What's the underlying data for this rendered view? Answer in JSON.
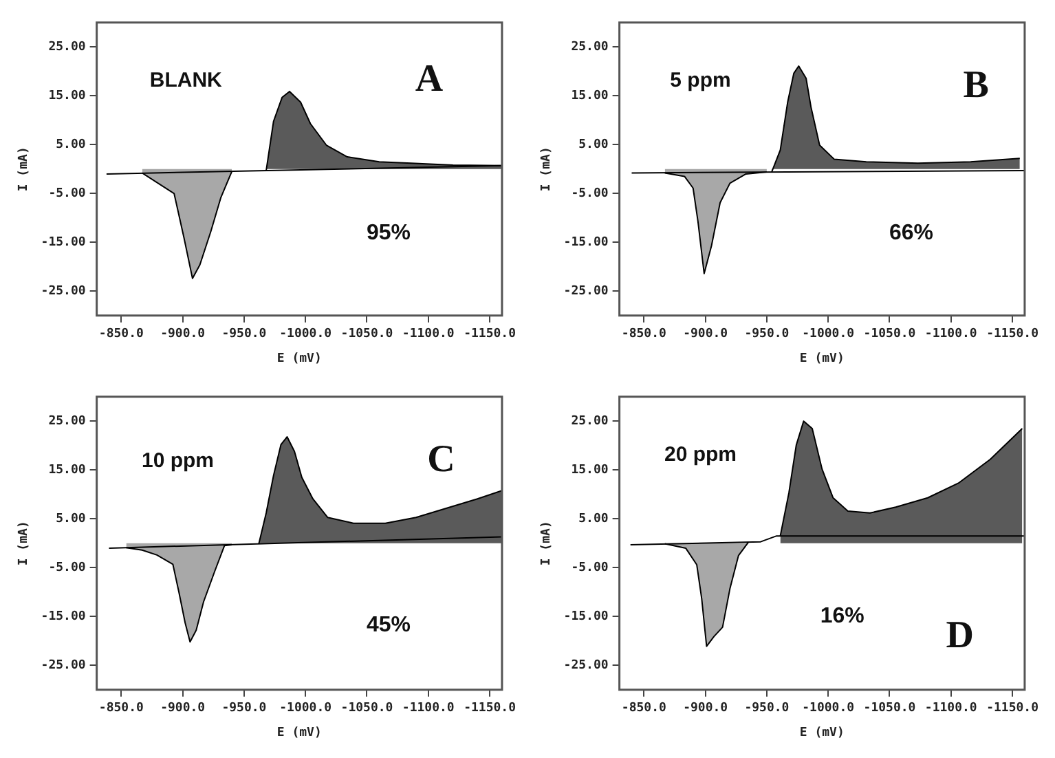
{
  "chart_data": [
    {
      "type": "area",
      "xlabel": "E (mV)",
      "ylabel": "I (mA)",
      "annotations": [
        "BLANK",
        "A",
        "95%"
      ],
      "xlim": [
        -830,
        -1160
      ],
      "ylim": [
        -30,
        30
      ],
      "xticks": [
        {
          "value": -850,
          "label": "-850.0"
        },
        {
          "value": -900,
          "label": "-900.0"
        },
        {
          "value": -950,
          "label": "-950.0"
        },
        {
          "value": -1000,
          "label": "-1000.0"
        },
        {
          "value": -1050,
          "label": "-1050.0"
        },
        {
          "value": -1100,
          "label": "-1100.0"
        },
        {
          "value": -1150,
          "label": "-1150.0"
        }
      ],
      "yticks": [
        {
          "value": 25,
          "label": "25.00"
        },
        {
          "value": 15,
          "label": "15.00"
        },
        {
          "value": 5,
          "label": "5.00"
        },
        {
          "value": -5,
          "label": "-5.00"
        },
        {
          "value": -15,
          "label": "-15.00"
        },
        {
          "value": -25,
          "label": "-25.00"
        }
      ],
      "grid": false,
      "legend": false,
      "marker": "none",
      "series": [
        {
          "type": "line",
          "color": "#000000",
          "x": [
            -838,
            -1160
          ],
          "values": [
            -1,
            0.7
          ]
        },
        {
          "color": "#a8a8a8",
          "x": [
            -867,
            -893,
            -901,
            -908,
            -914,
            -923,
            -931,
            -940
          ],
          "values": [
            -0.8,
            -5,
            -14,
            -22.4,
            -19.6,
            -12.7,
            -5.9,
            -0.5
          ]
        },
        {
          "color": "#5a5a5a",
          "x": [
            -968,
            -974,
            -981,
            -987,
            -996,
            -1004,
            -1017,
            -1034,
            -1060,
            -1086,
            -1120,
            -1160
          ],
          "values": [
            -0.3,
            9.8,
            14.7,
            15.9,
            13.7,
            9.3,
            4.9,
            2.5,
            1.5,
            1.2,
            0.8,
            0.7
          ]
        }
      ]
    },
    {
      "type": "area",
      "xlabel": "E (mV)",
      "ylabel": "I (mA)",
      "annotations": [
        "5 ppm",
        "B",
        "66%"
      ],
      "xlim": [
        -830,
        -1160
      ],
      "ylim": [
        -30,
        30
      ],
      "xticks": [
        {
          "value": -850,
          "label": "-850.0"
        },
        {
          "value": -900,
          "label": "-900.0"
        },
        {
          "value": -950,
          "label": "-950.0"
        },
        {
          "value": -1000,
          "label": "-1000.0"
        },
        {
          "value": -1050,
          "label": "-1050.0"
        },
        {
          "value": -1100,
          "label": "-1100.0"
        },
        {
          "value": -1150,
          "label": "-1150.0"
        }
      ],
      "yticks": [
        {
          "value": 25,
          "label": "25.00"
        },
        {
          "value": 15,
          "label": "15.00"
        },
        {
          "value": 5,
          "label": "5.00"
        },
        {
          "value": -5,
          "label": "-5.00"
        },
        {
          "value": -15,
          "label": "-15.00"
        },
        {
          "value": -25,
          "label": "-25.00"
        }
      ],
      "grid": false,
      "legend": false,
      "marker": "none",
      "series": [
        {
          "type": "line",
          "color": "#000000",
          "x": [
            -840,
            -1160
          ],
          "values": [
            -0.8,
            -0.3
          ]
        },
        {
          "color": "#a8a8a8",
          "x": [
            -867,
            -883,
            -890,
            -894,
            -899,
            -905,
            -912,
            -920,
            -933,
            -950
          ],
          "values": [
            -0.8,
            -1.5,
            -3.9,
            -10.8,
            -21.4,
            -15.7,
            -6.9,
            -2.9,
            -1,
            -0.6
          ]
        },
        {
          "color": "#5a5a5a",
          "x": [
            -954,
            -961,
            -967,
            -972,
            -976,
            -982,
            -986,
            -993,
            -1005,
            -1031,
            -1073,
            -1116,
            -1156
          ],
          "values": [
            -0.6,
            3.9,
            13.7,
            19.6,
            21.1,
            18.6,
            12.7,
            4.9,
            2,
            1.5,
            1.2,
            1.5,
            2.2
          ]
        }
      ]
    },
    {
      "type": "area",
      "xlabel": "E (mV)",
      "ylabel": "I (mA)",
      "annotations": [
        "10 ppm",
        "C",
        "45%"
      ],
      "xlim": [
        -830,
        -1160
      ],
      "ylim": [
        -30,
        30
      ],
      "xticks": [
        {
          "value": -850,
          "label": "-850.0"
        },
        {
          "value": -900,
          "label": "-900.0"
        },
        {
          "value": -950,
          "label": "-950.0"
        },
        {
          "value": -1000,
          "label": "-1000.0"
        },
        {
          "value": -1050,
          "label": "-1050.0"
        },
        {
          "value": -1100,
          "label": "-1100.0"
        },
        {
          "value": -1150,
          "label": "-1150.0"
        }
      ],
      "yticks": [
        {
          "value": 25,
          "label": "25.00"
        },
        {
          "value": 15,
          "label": "15.00"
        },
        {
          "value": 5,
          "label": "5.00"
        },
        {
          "value": -5,
          "label": "-5.00"
        },
        {
          "value": -15,
          "label": "-15.00"
        },
        {
          "value": -25,
          "label": "-25.00"
        }
      ],
      "grid": false,
      "legend": false,
      "marker": "none",
      "series": [
        {
          "type": "line",
          "color": "#000000",
          "x": [
            -840,
            -1160
          ],
          "values": [
            -1,
            1.3
          ]
        },
        {
          "color": "#a8a8a8",
          "x": [
            -854,
            -867,
            -879,
            -892,
            -897,
            -902,
            -906,
            -911,
            -917,
            -926,
            -934,
            -940
          ],
          "values": [
            -0.9,
            -1.4,
            -2.4,
            -4.3,
            -10.1,
            -16.3,
            -20.2,
            -17.8,
            -12,
            -5.8,
            -0.5,
            -0.3
          ]
        },
        {
          "color": "#5a5a5a",
          "x": [
            -962,
            -968,
            -974,
            -980,
            -985,
            -991,
            -997,
            -1006,
            -1018,
            -1039,
            -1065,
            -1090,
            -1115,
            -1140,
            -1160
          ],
          "values": [
            -0.1,
            6.2,
            13.9,
            20.2,
            21.8,
            18.8,
            13.5,
            9.1,
            5.3,
            4.1,
            4.1,
            5.3,
            7.2,
            9.1,
            10.8
          ]
        }
      ]
    },
    {
      "type": "area",
      "xlabel": "E (mV)",
      "ylabel": "I (mA)",
      "annotations": [
        "20 ppm",
        "D",
        "16%"
      ],
      "xlim": [
        -830,
        -1160
      ],
      "ylim": [
        -30,
        30
      ],
      "xticks": [
        {
          "value": -850,
          "label": "-850.0"
        },
        {
          "value": -900,
          "label": "-900.0"
        },
        {
          "value": -950,
          "label": "-950.0"
        },
        {
          "value": -1000,
          "label": "-1000.0"
        },
        {
          "value": -1050,
          "label": "-1050.0"
        },
        {
          "value": -1100,
          "label": "-1100.0"
        },
        {
          "value": -1150,
          "label": "-1150.0"
        }
      ],
      "yticks": [
        {
          "value": 25,
          "label": "25.00"
        },
        {
          "value": 15,
          "label": "15.00"
        },
        {
          "value": 5,
          "label": "5.00"
        },
        {
          "value": -5,
          "label": "-5.00"
        },
        {
          "value": -15,
          "label": "-15.00"
        },
        {
          "value": -25,
          "label": "-25.00"
        }
      ],
      "grid": false,
      "legend": false,
      "marker": "none",
      "series": [
        {
          "type": "line",
          "color": "#000000",
          "x": [
            -839,
            -945,
            -958,
            -1160
          ],
          "values": [
            -0.3,
            0.3,
            1.5,
            1.5
          ]
        },
        {
          "color": "#a8a8a8",
          "x": [
            -867,
            -884,
            -893,
            -897,
            -901,
            -907,
            -914,
            -920,
            -927,
            -935
          ],
          "values": [
            -0.1,
            -1,
            -4.4,
            -11.3,
            -21.1,
            -19.1,
            -17.2,
            -9.3,
            -2.5,
            0.2
          ]
        },
        {
          "color": "#5a5a5a",
          "x": [
            -961,
            -968,
            -974,
            -980,
            -987,
            -995,
            -1004,
            -1016,
            -1034,
            -1055,
            -1081,
            -1106,
            -1132,
            -1158
          ],
          "values": [
            1.5,
            10.3,
            20.1,
            25,
            23.5,
            15.2,
            9.3,
            6.6,
            6.2,
            7.4,
            9.3,
            12.3,
            17.2,
            23.5
          ]
        }
      ]
    }
  ]
}
